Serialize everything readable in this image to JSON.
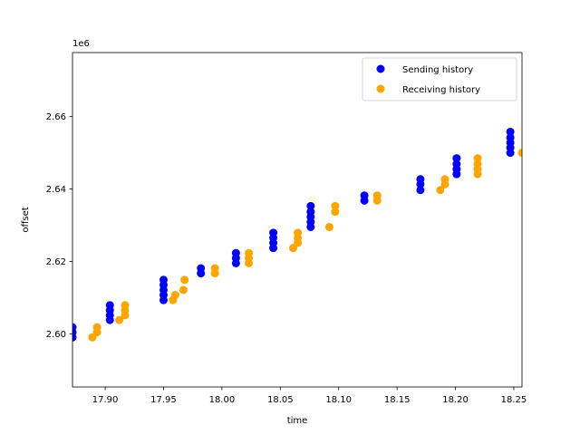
{
  "chart_data": {
    "type": "scatter",
    "xlabel": "time",
    "ylabel": "offset",
    "offset_text": "1e6",
    "xlim": [
      17.872,
      18.257
    ],
    "ylim": [
      2.5853,
      2.6777
    ],
    "ylim_scale": 1000000,
    "x_ticks": [
      17.9,
      17.95,
      18.0,
      18.05,
      18.1,
      18.15,
      18.2,
      18.25
    ],
    "x_tick_labels": [
      "17.90",
      "17.95",
      "18.00",
      "18.05",
      "18.10",
      "18.15",
      "18.20",
      "18.25"
    ],
    "y_ticks": [
      2.6,
      2.62,
      2.64,
      2.66
    ],
    "y_tick_labels": [
      "2.60",
      "2.62",
      "2.64",
      "2.66"
    ],
    "legend_position": "upper right",
    "grid": false,
    "series": [
      {
        "name": "Sending history",
        "color": "#0000ff",
        "points": [
          [
            17.872,
            2.599
          ],
          [
            17.872,
            2.6004
          ],
          [
            17.872,
            2.6018
          ],
          [
            17.904,
            2.6038
          ],
          [
            17.904,
            2.6051
          ],
          [
            17.904,
            2.6065
          ],
          [
            17.904,
            2.6079
          ],
          [
            17.95,
            2.6093
          ],
          [
            17.95,
            2.6107
          ],
          [
            17.95,
            2.6121
          ],
          [
            17.95,
            2.6135
          ],
          [
            17.95,
            2.6149
          ],
          [
            17.982,
            2.6167
          ],
          [
            17.982,
            2.6181
          ],
          [
            18.012,
            2.6195
          ],
          [
            18.012,
            2.6209
          ],
          [
            18.012,
            2.6223
          ],
          [
            18.044,
            2.6237
          ],
          [
            18.044,
            2.6251
          ],
          [
            18.044,
            2.6265
          ],
          [
            18.044,
            2.6279
          ],
          [
            18.076,
            2.6295
          ],
          [
            18.076,
            2.6309
          ],
          [
            18.076,
            2.6323
          ],
          [
            18.076,
            2.6337
          ],
          [
            18.076,
            2.6353
          ],
          [
            18.122,
            2.6368
          ],
          [
            18.122,
            2.6382
          ],
          [
            18.17,
            2.6397
          ],
          [
            18.17,
            2.6413
          ],
          [
            18.17,
            2.6427
          ],
          [
            18.201,
            2.6441
          ],
          [
            18.201,
            2.6455
          ],
          [
            18.201,
            2.6469
          ],
          [
            18.201,
            2.6485
          ],
          [
            18.247,
            2.65
          ],
          [
            18.247,
            2.6514
          ],
          [
            18.247,
            2.6528
          ],
          [
            18.247,
            2.6542
          ],
          [
            18.247,
            2.6558
          ]
        ]
      },
      {
        "name": "Receiving history",
        "color": "#ffa500",
        "points": [
          [
            17.889,
            2.599
          ],
          [
            17.893,
            2.6004
          ],
          [
            17.893,
            2.6018
          ],
          [
            17.912,
            2.6038
          ],
          [
            17.917,
            2.6051
          ],
          [
            17.917,
            2.6065
          ],
          [
            17.917,
            2.6079
          ],
          [
            17.958,
            2.6093
          ],
          [
            17.96,
            2.6107
          ],
          [
            17.967,
            2.6121
          ],
          [
            17.968,
            2.6149
          ],
          [
            17.994,
            2.6167
          ],
          [
            17.994,
            2.6181
          ],
          [
            18.023,
            2.6195
          ],
          [
            18.023,
            2.6209
          ],
          [
            18.023,
            2.6223
          ],
          [
            18.061,
            2.6237
          ],
          [
            18.065,
            2.6251
          ],
          [
            18.065,
            2.6265
          ],
          [
            18.065,
            2.6279
          ],
          [
            18.092,
            2.6295
          ],
          [
            18.097,
            2.6337
          ],
          [
            18.097,
            2.6353
          ],
          [
            18.133,
            2.6368
          ],
          [
            18.133,
            2.6382
          ],
          [
            18.187,
            2.6397
          ],
          [
            18.191,
            2.6413
          ],
          [
            18.191,
            2.6427
          ],
          [
            18.219,
            2.6441
          ],
          [
            18.219,
            2.6455
          ],
          [
            18.219,
            2.6469
          ],
          [
            18.219,
            2.6485
          ],
          [
            18.257,
            2.65
          ]
        ]
      }
    ]
  }
}
